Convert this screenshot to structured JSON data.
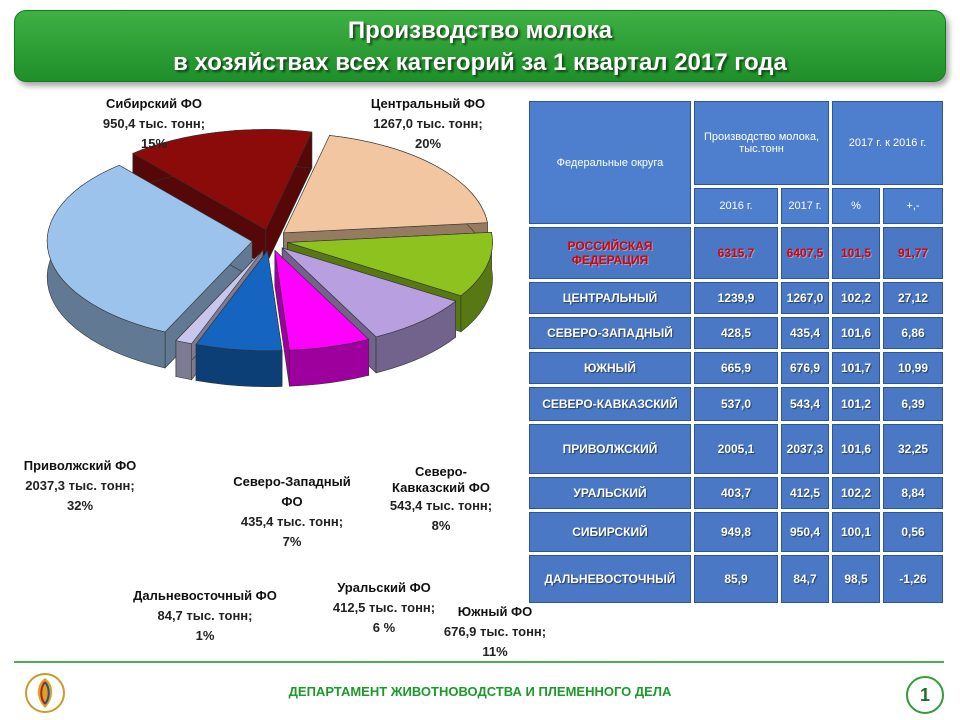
{
  "title": {
    "line1": "Производство молока",
    "line2": "в хозяйствах всех категорий за 1 квартал 2017 года"
  },
  "chart_data": {
    "type": "pie",
    "title": "Производство молока в хозяйствах всех категорий за 1 квартал 2017 года",
    "slices": [
      {
        "name": "Центральный ФО",
        "value": 1267.0,
        "value_label": "1267,0 тыс. тонн;",
        "percent": 20,
        "percent_label": "20%",
        "color": "#f2c6a0"
      },
      {
        "name": "Южный ФО",
        "value": 676.9,
        "value_label": "676,9 тыс. тонн;",
        "percent": 11,
        "percent_label": "11%",
        "color": "#8dc21f"
      },
      {
        "name": "Северо-Кавказский ФО",
        "value": 543.4,
        "value_label": "543,4 тыс. тонн;",
        "percent": 8,
        "percent_label": "8%",
        "color": "#b79fe0"
      },
      {
        "name": "Уральский ФО",
        "value": 412.5,
        "value_label": "412,5 тыс. тонн;",
        "percent": 6,
        "percent_label": "6 %",
        "color": "#ff00ff"
      },
      {
        "name": "Северо-Западный ФО",
        "value": 435.4,
        "value_label": "435,4 тыс. тонн;",
        "percent": 7,
        "percent_label": "7%",
        "color": "#1565c0"
      },
      {
        "name": "Дальневосточный ФО",
        "value": 84.7,
        "value_label": "84,7 тыс. тонн;",
        "percent": 1,
        "percent_label": "1%",
        "color": "#c9c6ee"
      },
      {
        "name": "Приволжский ФО",
        "value": 2037.3,
        "value_label": "2037,3 тыс. тонн;",
        "percent": 32,
        "percent_label": "32%",
        "color": "#9cc3ec"
      },
      {
        "name": "Сибирский ФО",
        "value": 950.4,
        "value_label": "950,4 тыс. тонн;",
        "percent": 15,
        "percent_label": "15%",
        "color": "#8b0b0b"
      }
    ]
  },
  "table": {
    "header": {
      "district": "Федеральные округа",
      "production": "Производство молока, тыс.тонн",
      "compare": "2017 г. к 2016 г.",
      "y2016": "2016 г.",
      "y2017": "2017 г.",
      "pct": "%",
      "diff": "+,-"
    },
    "rows": [
      {
        "name": "РОССИЙСКАЯ ФЕДЕРАЦИЯ",
        "v2016": "6315,7",
        "v2017": "6407,5",
        "pct": "101,5",
        "diff": "91,77"
      },
      {
        "name": "ЦЕНТРАЛЬНЫЙ",
        "v2016": "1239,9",
        "v2017": "1267,0",
        "pct": "102,2",
        "diff": "27,12"
      },
      {
        "name": "СЕВЕРО-ЗАПАДНЫЙ",
        "v2016": "428,5",
        "v2017": "435,4",
        "pct": "101,6",
        "diff": "6,86"
      },
      {
        "name": "ЮЖНЫЙ",
        "v2016": "665,9",
        "v2017": "676,9",
        "pct": "101,7",
        "diff": "10,99"
      },
      {
        "name": "СЕВЕРО-КАВКАЗСКИЙ",
        "v2016": "537,0",
        "v2017": "543,4",
        "pct": "101,2",
        "diff": "6,39"
      },
      {
        "name": "ПРИВОЛЖСКИЙ",
        "v2016": "2005,1",
        "v2017": "2037,3",
        "pct": "101,6",
        "diff": "32,25"
      },
      {
        "name": "УРАЛЬСКИЙ",
        "v2016": "403,7",
        "v2017": "412,5",
        "pct": "102,2",
        "diff": "8,84"
      },
      {
        "name": "СИБИРСКИЙ",
        "v2016": "949,8",
        "v2017": "950,4",
        "pct": "100,1",
        "diff": "0,56"
      },
      {
        "name": "ДАЛЬНЕВОСТОЧНЫЙ",
        "v2016": "85,9",
        "v2017": "84,7",
        "pct": "98,5",
        "diff": "-1,26"
      }
    ]
  },
  "footer": {
    "department": "ДЕПАРТАМЕНТ ЖИВОТНОВОДСТВА И ПЛЕМЕННОГО ДЕЛА",
    "page": "1"
  }
}
